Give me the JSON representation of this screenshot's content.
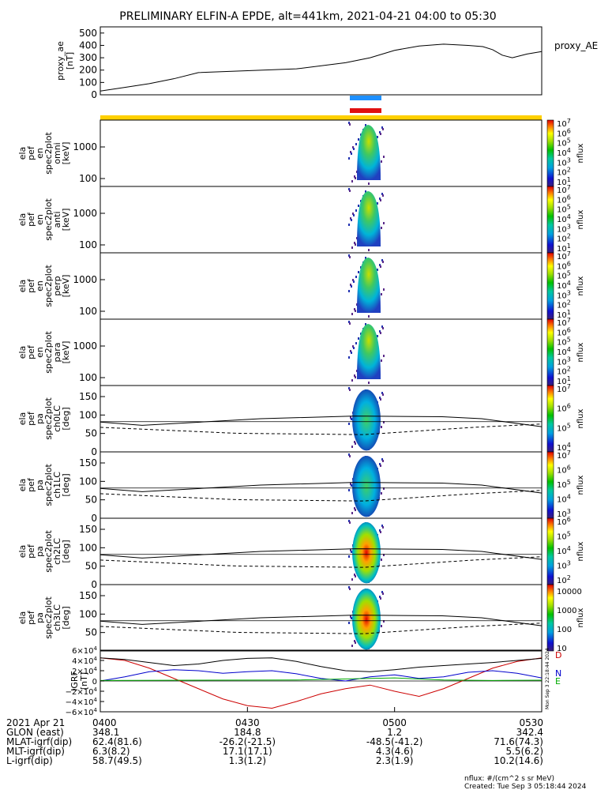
{
  "title": "PRELIMINARY ELFIN-A EPDE, alt=441km, 2021-04-21 04:00 to 05:30",
  "chart_data": {
    "type": "heatmap",
    "time_range": [
      "04:00",
      "05:30"
    ],
    "x_ticks": [
      "0400",
      "0430",
      "0500",
      "0530"
    ],
    "proxy_ae": {
      "ylabel": [
        "proxy_ae",
        "[nT]"
      ],
      "legend": "proxy_AE",
      "ylim": [
        0,
        550
      ],
      "yticks": [
        "500",
        "400",
        "300",
        "200",
        "100",
        "0"
      ],
      "x": [
        0,
        5,
        10,
        15,
        20,
        30,
        40,
        50,
        55,
        60,
        65,
        70,
        75,
        78,
        80,
        82,
        84,
        87,
        90
      ],
      "values": [
        30,
        60,
        90,
        130,
        180,
        195,
        210,
        260,
        300,
        360,
        395,
        410,
        400,
        390,
        365,
        320,
        300,
        330,
        350
      ]
    },
    "spectra": [
      {
        "ylabel": [
          "ela",
          "pef",
          "en",
          "spec2plot",
          "omni",
          "[keV]"
        ],
        "yticks": [
          "1000",
          "100"
        ],
        "cb_top": "10",
        "cb_top_exp": "7",
        "cb_exps": [
          "6",
          "5",
          "4",
          "3",
          "2",
          "1"
        ],
        "cb_label": "nflux"
      },
      {
        "ylabel": [
          "ela",
          "pef",
          "en",
          "spec2plot",
          "anti",
          "[keV]"
        ],
        "yticks": [
          "1000",
          "100"
        ],
        "cb_top": "10",
        "cb_top_exp": "7",
        "cb_exps": [
          "6",
          "5",
          "4",
          "3",
          "2",
          "1"
        ],
        "cb_label": "nflux"
      },
      {
        "ylabel": [
          "ela",
          "pef",
          "en",
          "spec2plot",
          "perp",
          "[keV]"
        ],
        "yticks": [
          "1000",
          "100"
        ],
        "cb_top": "10",
        "cb_top_exp": "7",
        "cb_exps": [
          "6",
          "5",
          "4",
          "3",
          "2",
          "1"
        ],
        "cb_label": "nflux"
      },
      {
        "ylabel": [
          "ela",
          "pef",
          "en",
          "spec2plot",
          "para",
          "[keV]"
        ],
        "yticks": [
          "1000",
          "100"
        ],
        "cb_top": "10",
        "cb_top_exp": "7",
        "cb_exps": [
          "6",
          "5",
          "4",
          "3",
          "2",
          "1"
        ],
        "cb_label": "nflux"
      }
    ],
    "pitch_angle": [
      {
        "ylabel": [
          "ela",
          "pef",
          "pa",
          "spec2plot",
          "ch0LC",
          "[deg]"
        ],
        "yticks": [
          "150",
          "100",
          "50",
          "0"
        ],
        "cb_top": "10",
        "cb_top_exp": "7",
        "cb_exps": [
          "6",
          "5",
          "4"
        ],
        "cb_label": "nflux"
      },
      {
        "ylabel": [
          "ela",
          "pef",
          "pa",
          "spec2plot",
          "ch1LC",
          "[deg]"
        ],
        "yticks": [
          "150",
          "100",
          "50",
          "0"
        ],
        "cb_top": "10",
        "cb_top_exp": "7",
        "cb_exps": [
          "6",
          "5",
          "4",
          "3"
        ],
        "cb_label": "nflux"
      },
      {
        "ylabel": [
          "ela",
          "pef",
          "pa",
          "spec2plot",
          "ch2LC",
          "[deg]"
        ],
        "yticks": [
          "150",
          "100",
          "50",
          "0"
        ],
        "cb_top": "10",
        "cb_top_exp": "6",
        "cb_exps": [
          "5",
          "4",
          "3",
          "2"
        ],
        "cb_label": "nflux"
      },
      {
        "ylabel": [
          "ela",
          "pef",
          "pa",
          "spec2plot",
          "ch3LC",
          "[deg]"
        ],
        "yticks": [
          "150",
          "100",
          "50"
        ],
        "cb_top": "",
        "cb_top_exp": "",
        "cb_exps": [],
        "cb_plain": [
          "10000",
          "1000",
          "100",
          "10"
        ],
        "cb_label": "nflux"
      }
    ],
    "igrf": {
      "ylabel": [
        "IGRF",
        "[nT]"
      ],
      "ylim": [
        -60000,
        60000
      ],
      "yticks": [
        {
          "m": "6",
          "sign": "",
          "v": 60000
        },
        {
          "m": "4",
          "sign": "",
          "v": 40000
        },
        {
          "m": "2",
          "sign": "",
          "v": 20000
        },
        {
          "m": "0",
          "sign": "",
          "v": 0
        },
        {
          "m": "2",
          "sign": "−",
          "v": -20000
        },
        {
          "m": "4",
          "sign": "−",
          "v": -40000
        },
        {
          "m": "6",
          "sign": "−",
          "v": -60000
        }
      ],
      "legend": [
        "D",
        "N",
        "E"
      ],
      "side_text": "Mon Sep  3 22:18:44 2024",
      "series": [
        {
          "name": "D",
          "color": "#cc0000",
          "x": [
            0,
            5,
            10,
            15,
            20,
            25,
            30,
            35,
            40,
            45,
            50,
            55,
            60,
            65,
            70,
            75,
            80,
            85,
            90
          ],
          "values": [
            45000,
            40000,
            25000,
            5000,
            -15000,
            -35000,
            -48000,
            -53000,
            -40000,
            -25000,
            -15000,
            -8000,
            -20000,
            -30000,
            -15000,
            5000,
            25000,
            38000,
            45000
          ]
        },
        {
          "name": "N",
          "color": "#0000cc",
          "x": [
            0,
            5,
            10,
            15,
            20,
            25,
            30,
            35,
            40,
            45,
            50,
            55,
            60,
            65,
            70,
            75,
            80,
            85,
            90
          ],
          "values": [
            0,
            8000,
            18000,
            22000,
            20000,
            15000,
            18000,
            20000,
            14000,
            5000,
            0,
            8000,
            12000,
            5000,
            8000,
            17000,
            20000,
            15000,
            6000
          ]
        },
        {
          "name": "E",
          "color": "#00aa00",
          "x": [
            0,
            20,
            40,
            60,
            70,
            80,
            90
          ],
          "values": [
            1000,
            1500,
            2000,
            6000,
            2000,
            1000,
            1500
          ]
        },
        {
          "name": "",
          "color": "#000000",
          "x": [
            0,
            5,
            10,
            15,
            20,
            25,
            30,
            35,
            40,
            45,
            50,
            55,
            60,
            65,
            70,
            75,
            80,
            85,
            90
          ],
          "values": [
            45000,
            42000,
            36000,
            30000,
            33000,
            40000,
            44000,
            45000,
            38000,
            28000,
            20000,
            18000,
            22000,
            27000,
            30000,
            33000,
            36000,
            40000,
            44000
          ]
        }
      ]
    },
    "orbit_table": [
      {
        "label": "2021 Apr 21",
        "values": [
          "0400",
          "0430",
          "0500",
          "0530"
        ]
      },
      {
        "label": "GLON (east)",
        "values": [
          "348.1",
          "184.8",
          "1.2",
          "342.4"
        ]
      },
      {
        "label": "MLAT-igrf(dip)",
        "values": [
          "62.4(81.6)",
          "-26.2(-21.5)",
          "-48.5(-41.2)",
          "71.6(74.3)"
        ]
      },
      {
        "label": "MLT-igrf(dip)",
        "values": [
          "6.3(8.2)",
          "17.1(17.1)",
          "4.3(4.6)",
          "5.5(6.2)"
        ]
      },
      {
        "label": "L-igrf(dip)",
        "values": [
          "58.7(49.5)",
          "1.3(1.2)",
          "2.3(1.9)",
          "10.2(14.6)"
        ]
      }
    ],
    "footer": [
      "nflux: #/(cm^2 s sr MeV)",
      "Created: Tue Sep  3 05:18:44 2024"
    ]
  }
}
